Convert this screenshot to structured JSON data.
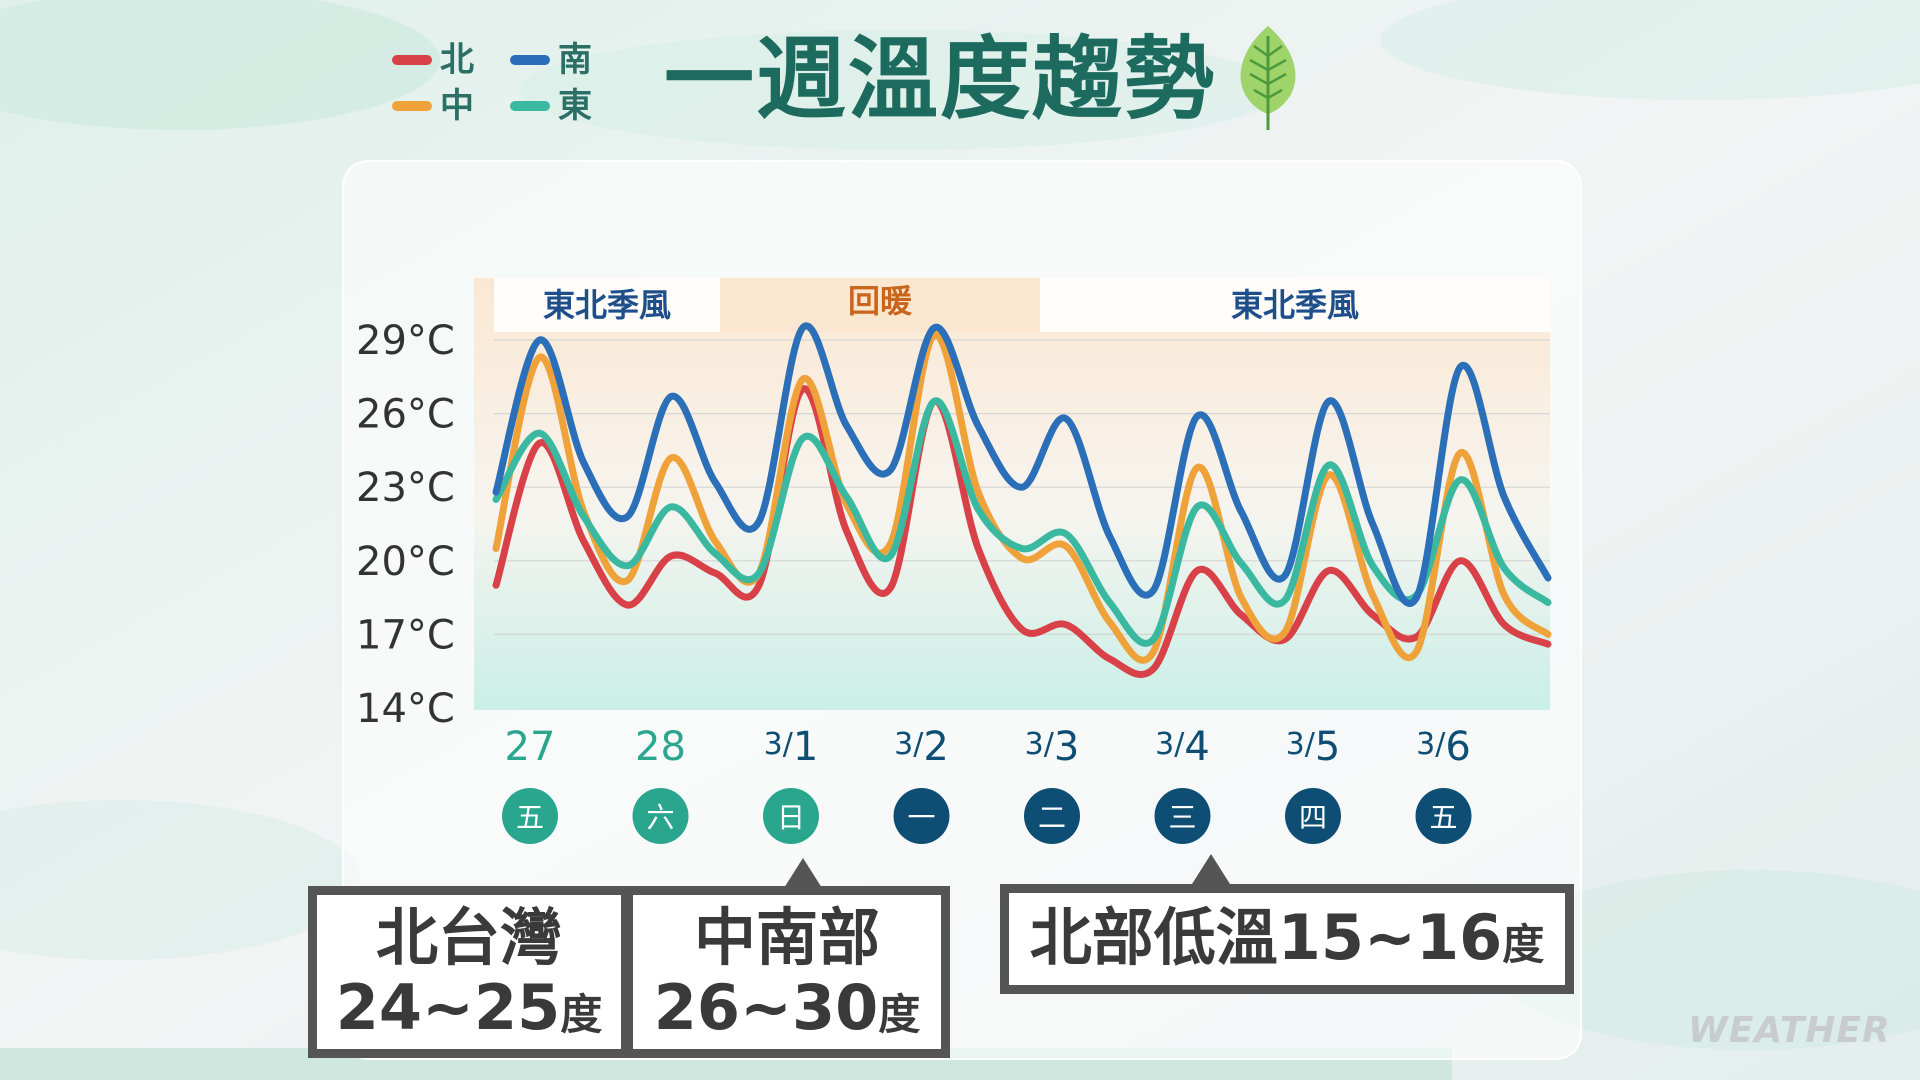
{
  "title": "一週溫度趨勢",
  "legend": [
    {
      "label": "北",
      "color": "#d94148"
    },
    {
      "label": "南",
      "color": "#2a6fb8"
    },
    {
      "label": "中",
      "color": "#f0a23a"
    },
    {
      "label": "東",
      "color": "#3bb9a0"
    }
  ],
  "chart_data": {
    "type": "line",
    "y_ticks": [
      "29°C",
      "26°C",
      "23°C",
      "20°C",
      "17°C",
      "14°C"
    ],
    "ylim": [
      14,
      30
    ],
    "x_tick_dates": [
      "27",
      "28",
      "3/1",
      "3/2",
      "3/3",
      "3/4",
      "3/5",
      "3/6"
    ],
    "x_tick_weekdays": [
      "五",
      "六",
      "日",
      "一",
      "二",
      "三",
      "四",
      "五"
    ],
    "x_tick_weekday_colors": [
      "#2aa68f",
      "#2aa68f",
      "#2aa68f",
      "#0f4e74",
      "#0f4e74",
      "#0f4e74",
      "#0f4e74",
      "#0f4e74"
    ],
    "bands": [
      {
        "label": "東北季風",
        "from": 27,
        "to": 28.4
      },
      {
        "label": "回暖",
        "from": 28.4,
        "to": "3/2"
      },
      {
        "label": "東北季風",
        "from": "3/2",
        "to": "3/6"
      }
    ],
    "series": [
      {
        "name": "北",
        "color": "#d94148",
        "values": [
          19.0,
          24.8,
          20.8,
          18.2,
          20.2,
          19.5,
          19.0,
          27.0,
          21.2,
          18.9,
          26.5,
          20.5,
          17.2,
          17.4,
          16.0,
          15.6,
          19.6,
          17.8,
          16.8,
          19.6,
          17.8,
          16.9,
          20.0,
          17.4,
          16.6
        ]
      },
      {
        "name": "中",
        "color": "#f0a23a",
        "values": [
          20.5,
          28.3,
          22.0,
          19.2,
          24.2,
          20.8,
          19.5,
          27.4,
          22.3,
          20.7,
          29.2,
          22.8,
          20.1,
          20.6,
          17.5,
          16.3,
          23.8,
          18.5,
          17.1,
          23.5,
          18.6,
          16.3,
          24.4,
          18.6,
          17.0
        ]
      },
      {
        "name": "東",
        "color": "#3bb9a0",
        "values": [
          22.5,
          25.2,
          21.8,
          19.8,
          22.2,
          20.3,
          19.5,
          25.0,
          22.6,
          20.2,
          26.5,
          22.1,
          20.5,
          21.1,
          18.3,
          16.8,
          22.2,
          19.9,
          18.4,
          23.9,
          19.8,
          18.6,
          23.3,
          19.7,
          18.3
        ]
      },
      {
        "name": "南",
        "color": "#2a6fb8",
        "values": [
          22.8,
          29.0,
          24.0,
          21.8,
          26.7,
          23.2,
          21.6,
          29.5,
          25.5,
          23.7,
          29.5,
          25.5,
          23.0,
          25.8,
          21.0,
          18.8,
          25.9,
          22.0,
          19.4,
          26.5,
          21.5,
          18.5,
          27.9,
          22.6,
          19.3
        ]
      }
    ],
    "grid": true
  },
  "boxes": {
    "north": {
      "line1": "北台灣",
      "line2": "24~25",
      "unit": "度"
    },
    "central_south": {
      "line1": "中南部",
      "line2": "26~30",
      "unit": "度"
    },
    "low": {
      "text": "北部低溫15~16",
      "unit": "度"
    }
  },
  "watermark": "WEATHER"
}
